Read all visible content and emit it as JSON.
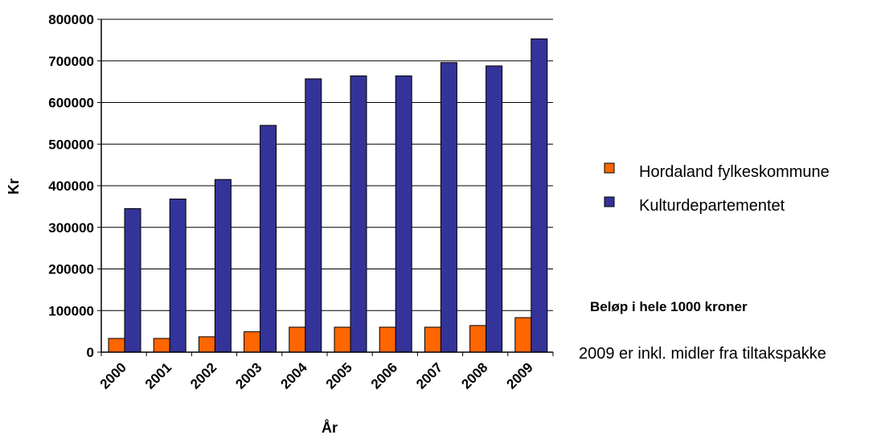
{
  "chart_data": {
    "type": "bar",
    "categories": [
      "2000",
      "2001",
      "2002",
      "2003",
      "2004",
      "2005",
      "2006",
      "2007",
      "2008",
      "2009"
    ],
    "series": [
      {
        "name": "Hordaland fylkeskommune",
        "color": "#ff6600",
        "values": [
          33000,
          33000,
          37000,
          49000,
          60000,
          60000,
          60000,
          60000,
          64000,
          83000
        ]
      },
      {
        "name": "Kulturdepartementet",
        "color": "#333399",
        "values": [
          345000,
          368000,
          415000,
          545000,
          657000,
          664000,
          664000,
          696000,
          688000,
          753000
        ]
      }
    ],
    "ylim": [
      0,
      800000
    ],
    "yticks": [
      "0",
      "100000",
      "200000",
      "300000",
      "400000",
      "500000",
      "600000",
      "700000",
      "800000"
    ],
    "xlabel": "År",
    "ylabel": "Kr",
    "legend_position": "right",
    "grid": true
  },
  "notes": {
    "unit_note": "Beløp i hele 1000 kroner",
    "footnote": "2009 er inkl. midler fra tiltakspakke"
  }
}
